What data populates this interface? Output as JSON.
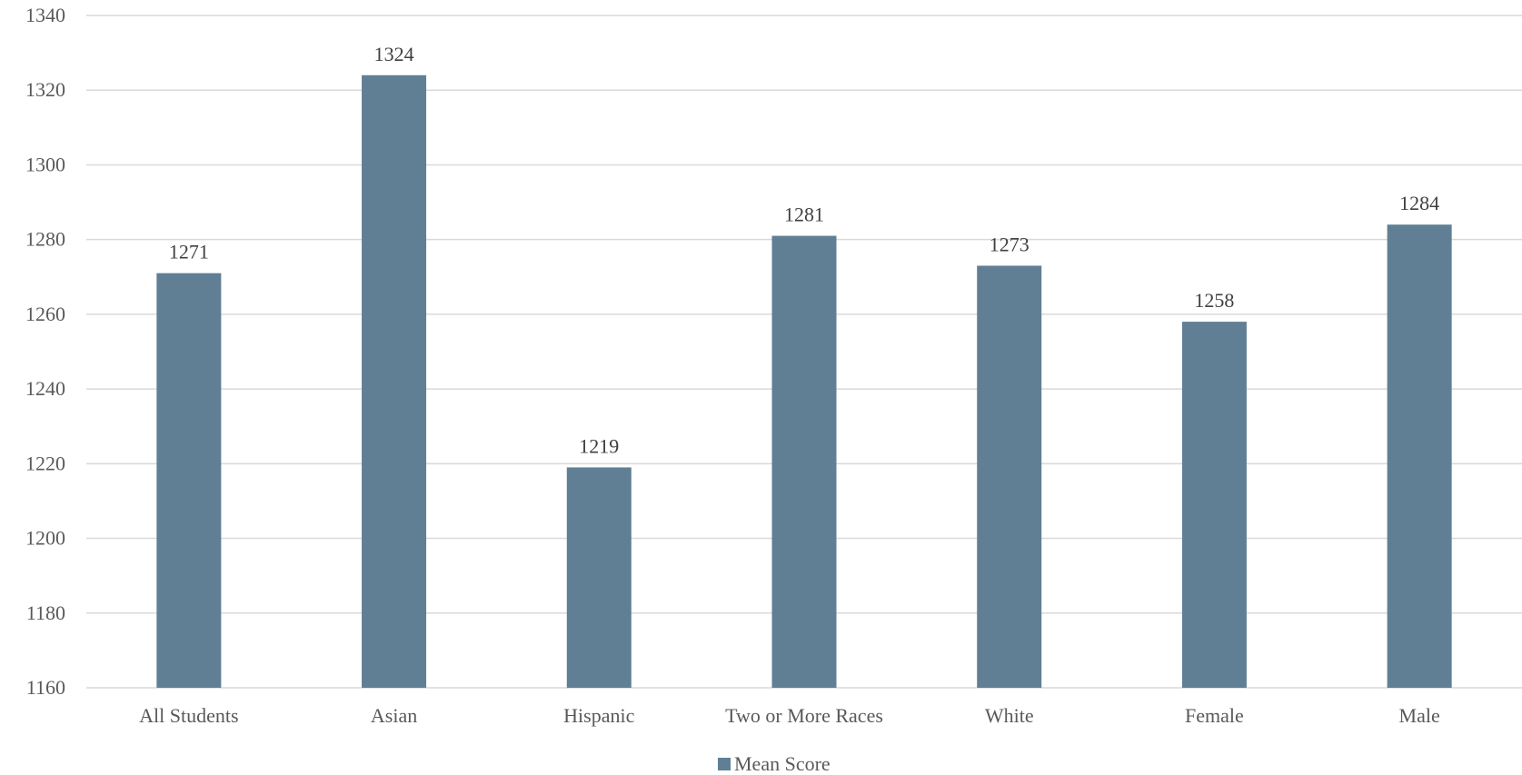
{
  "chart_data": {
    "type": "bar",
    "title": "",
    "xlabel": "",
    "ylabel": "",
    "categories": [
      "All Students",
      "Asian",
      "Hispanic",
      "Two or More Races",
      "White",
      "Female",
      "Male"
    ],
    "series": [
      {
        "name": "Mean Score",
        "values": [
          1271,
          1324,
          1219,
          1281,
          1273,
          1258,
          1284
        ],
        "color": "#607f94"
      }
    ],
    "ylim": [
      1160,
      1340
    ],
    "yticks": [
      1160,
      1180,
      1200,
      1220,
      1240,
      1260,
      1280,
      1300,
      1320,
      1340
    ],
    "grid": true,
    "data_labels": true,
    "legend": "bottom-center"
  }
}
